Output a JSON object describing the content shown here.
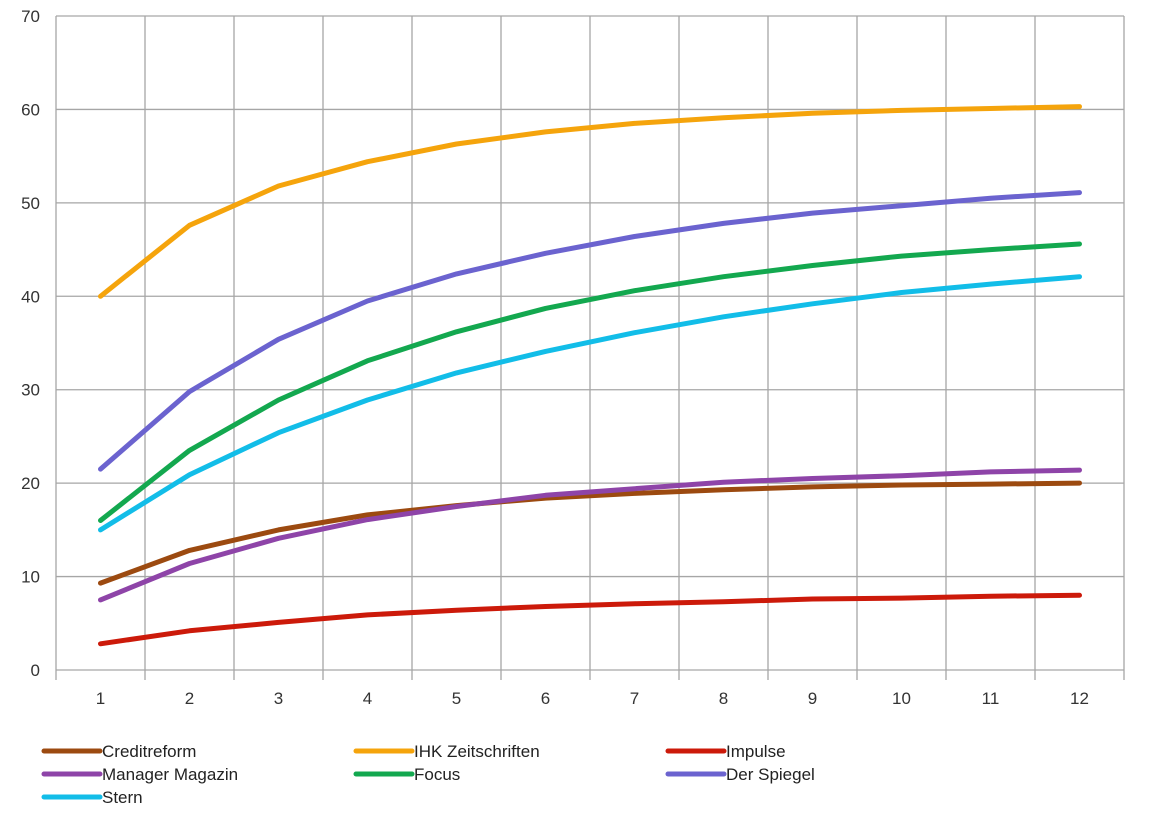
{
  "chart_data": {
    "type": "line",
    "title": "",
    "xlabel": "",
    "ylabel": "",
    "x": [
      1,
      2,
      3,
      4,
      5,
      6,
      7,
      8,
      9,
      10,
      11,
      12
    ],
    "ylim": [
      0,
      70
    ],
    "yticks": [
      0,
      10,
      20,
      30,
      40,
      50,
      60,
      70
    ],
    "grid": true,
    "legend_position": "bottom",
    "series": [
      {
        "name": "Creditreform",
        "color": "#9c4a10",
        "values": [
          9.3,
          12.8,
          15.0,
          16.6,
          17.6,
          18.4,
          18.9,
          19.3,
          19.6,
          19.8,
          19.9,
          20.0
        ]
      },
      {
        "name": "IHK Zeitschriften",
        "color": "#f5a40c",
        "values": [
          40.0,
          47.6,
          51.8,
          54.4,
          56.3,
          57.6,
          58.5,
          59.1,
          59.6,
          59.9,
          60.1,
          60.3
        ]
      },
      {
        "name": "Impulse",
        "color": "#cc1a0a",
        "values": [
          2.8,
          4.2,
          5.1,
          5.9,
          6.4,
          6.8,
          7.1,
          7.3,
          7.6,
          7.7,
          7.9,
          8.0
        ]
      },
      {
        "name": "Manager Magazin",
        "color": "#8e44a8",
        "values": [
          7.5,
          11.4,
          14.1,
          16.1,
          17.5,
          18.7,
          19.4,
          20.1,
          20.5,
          20.8,
          21.2,
          21.4
        ]
      },
      {
        "name": "Focus",
        "color": "#13a84f",
        "values": [
          16.0,
          23.5,
          28.9,
          33.1,
          36.2,
          38.7,
          40.6,
          42.1,
          43.3,
          44.3,
          45.0,
          45.6
        ]
      },
      {
        "name": "Der Spiegel",
        "color": "#6b63cf",
        "values": [
          21.5,
          29.8,
          35.4,
          39.5,
          42.4,
          44.6,
          46.4,
          47.8,
          48.9,
          49.7,
          50.5,
          51.1
        ]
      },
      {
        "name": "Stern",
        "color": "#12bde8",
        "values": [
          15.0,
          20.9,
          25.4,
          28.9,
          31.8,
          34.1,
          36.1,
          37.8,
          39.2,
          40.4,
          41.3,
          42.1
        ]
      }
    ]
  }
}
